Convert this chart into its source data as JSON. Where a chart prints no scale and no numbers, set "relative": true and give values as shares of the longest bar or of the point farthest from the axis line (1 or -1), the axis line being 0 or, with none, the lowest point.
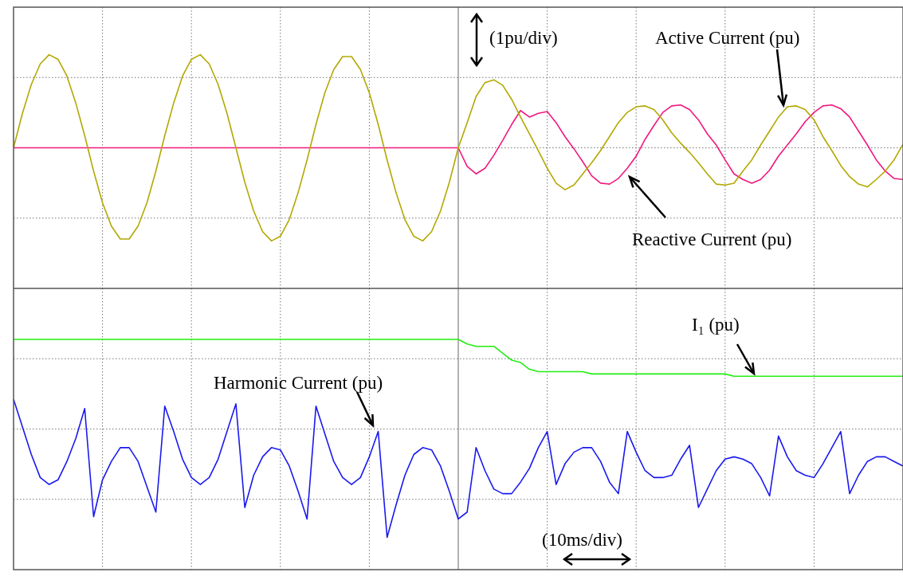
{
  "chart_data": [
    {
      "type": "line",
      "relative": true,
      "grid": true,
      "annotations": [
        "(1pu/div)"
      ],
      "categories": [
        null,
        null,
        null,
        null,
        null,
        null,
        null,
        null,
        null,
        null,
        null,
        null,
        null,
        null,
        null,
        null,
        null,
        null,
        null,
        null,
        null,
        null,
        null,
        null,
        null,
        null,
        null,
        null,
        null,
        null,
        null,
        null,
        null,
        null,
        null,
        null,
        null,
        null,
        null,
        null,
        null,
        null,
        null,
        null,
        null,
        null,
        null,
        null,
        null,
        null,
        null,
        null,
        null,
        null,
        null,
        null,
        null,
        null,
        null,
        null,
        null,
        null,
        null,
        null,
        null,
        null,
        null,
        null,
        null,
        null,
        null,
        null,
        null,
        null,
        null,
        null,
        null,
        null,
        null,
        null,
        null,
        null,
        null,
        null,
        null,
        null,
        null,
        null,
        null,
        null,
        null,
        null,
        null,
        null,
        null,
        null,
        null,
        null,
        null,
        null,
        null
      ],
      "series": [
        {
          "name": "Active Current (pu)",
          "color": "#b3a800",
          "values": [
            0,
            0.37,
            0.68,
            0.9,
            1,
            0.95,
            0.77,
            0.48,
            0.13,
            -0.25,
            -0.59,
            -0.84,
            -0.98,
            -0.98,
            -0.84,
            -0.59,
            -0.25,
            0.13,
            0.48,
            0.77,
            0.95,
            1,
            0.9,
            0.68,
            0.37,
            0,
            -0.37,
            -0.68,
            -0.9,
            -1,
            -0.95,
            -0.77,
            -0.48,
            -0.13,
            0.25,
            0.59,
            0.84,
            0.98,
            0.98,
            0.84,
            0.59,
            0.25,
            -0.13,
            -0.48,
            -0.77,
            -0.95,
            -1,
            -0.9,
            -0.68,
            -0.37,
            0,
            0.27,
            0.55,
            0.7,
            0.73,
            0.67,
            0.52,
            0.33,
            0.15,
            -0.03,
            -0.22,
            -0.38,
            -0.45,
            -0.4,
            -0.28,
            -0.16,
            -0.03,
            0.12,
            0.27,
            0.38,
            0.44,
            0.45,
            0.41,
            0.3,
            0.16,
            0.05,
            -0.05,
            -0.16,
            -0.28,
            -0.39,
            -0.4,
            -0.38,
            -0.25,
            -0.13,
            0.03,
            0.18,
            0.33,
            0.44,
            0.45,
            0.41,
            0.3,
            0.12,
            -0.03,
            -0.19,
            -0.31,
            -0.39,
            -0.42,
            -0.34,
            -0.25,
            -0.13,
            0.04
          ]
        },
        {
          "name": "Reactive Current (pu)",
          "color": "#f0197d",
          "values": [
            0,
            0,
            0,
            0,
            0,
            0,
            0,
            0,
            0,
            0,
            0,
            0,
            0,
            0,
            0,
            0,
            0,
            0,
            0,
            0,
            0,
            0,
            0,
            0,
            0,
            0,
            0,
            0,
            0,
            0,
            0,
            0,
            0,
            0,
            0,
            0,
            0,
            0,
            0,
            0,
            0,
            0,
            0,
            0,
            0,
            0,
            0,
            0,
            0,
            0,
            0,
            -0.2,
            -0.28,
            -0.22,
            -0.08,
            0.08,
            0.25,
            0.4,
            0.33,
            0.37,
            0.39,
            0.27,
            0.12,
            -0.01,
            -0.15,
            -0.3,
            -0.38,
            -0.39,
            -0.33,
            -0.22,
            -0.09,
            0.09,
            0.24,
            0.38,
            0.45,
            0.46,
            0.41,
            0.3,
            0.15,
            0.03,
            -0.13,
            -0.28,
            -0.34,
            -0.38,
            -0.34,
            -0.24,
            -0.09,
            0.03,
            0.15,
            0.28,
            0.38,
            0.45,
            0.46,
            0.42,
            0.33,
            0.18,
            0.03,
            -0.13,
            -0.25,
            -0.33,
            -0.34
          ]
        }
      ]
    },
    {
      "type": "line",
      "relative": true,
      "grid": true,
      "annotations": [
        "(10ms/div)"
      ],
      "categories": [
        null,
        null,
        null,
        null,
        null,
        null,
        null,
        null,
        null,
        null,
        null,
        null,
        null,
        null,
        null,
        null,
        null,
        null,
        null,
        null,
        null,
        null,
        null,
        null,
        null,
        null,
        null,
        null,
        null,
        null,
        null,
        null,
        null,
        null,
        null,
        null,
        null,
        null,
        null,
        null,
        null,
        null,
        null,
        null,
        null,
        null,
        null,
        null,
        null,
        null,
        null,
        null,
        null,
        null,
        null,
        null,
        null,
        null,
        null,
        null,
        null,
        null,
        null,
        null,
        null,
        null,
        null,
        null,
        null,
        null,
        null,
        null,
        null,
        null,
        null,
        null,
        null,
        null,
        null,
        null,
        null,
        null,
        null,
        null,
        null,
        null,
        null,
        null,
        null,
        null,
        null,
        null,
        null,
        null,
        null,
        null,
        null,
        null,
        null,
        null,
        null
      ],
      "series": [
        {
          "name": "I₁ (pu)",
          "color": "#22ee11",
          "values": [
            1,
            1,
            1,
            1,
            1,
            1,
            1,
            1,
            1,
            1,
            1,
            1,
            1,
            1,
            1,
            1,
            1,
            1,
            1,
            1,
            1,
            1,
            1,
            1,
            1,
            1,
            1,
            1,
            1,
            1,
            1,
            1,
            1,
            1,
            1,
            1,
            1,
            1,
            1,
            1,
            1,
            1,
            1,
            1,
            1,
            1,
            1,
            1,
            1,
            1,
            1,
            0.98,
            0.97,
            0.97,
            0.97,
            0.94,
            0.91,
            0.9,
            0.87,
            0.86,
            0.86,
            0.86,
            0.86,
            0.86,
            0.86,
            0.85,
            0.85,
            0.85,
            0.85,
            0.85,
            0.85,
            0.85,
            0.85,
            0.85,
            0.85,
            0.85,
            0.85,
            0.85,
            0.85,
            0.85,
            0.85,
            0.84,
            0.84,
            0.84,
            0.84,
            0.84,
            0.84,
            0.84,
            0.84,
            0.84,
            0.84,
            0.84,
            0.84,
            0.84,
            0.84,
            0.84,
            0.84,
            0.84,
            0.84,
            0.84,
            0.84
          ]
        },
        {
          "name": "Harmonic Current (pu)",
          "color": "#1a1aee",
          "values": [
            0.74,
            0.62,
            0.5,
            0.4,
            0.37,
            0.39,
            0.47,
            0.57,
            0.7,
            0.23,
            0.39,
            0.47,
            0.53,
            0.53,
            0.47,
            0.36,
            0.25,
            0.71,
            0.6,
            0.48,
            0.4,
            0.37,
            0.4,
            0.48,
            0.6,
            0.72,
            0.27,
            0.41,
            0.49,
            0.53,
            0.52,
            0.45,
            0.34,
            0.22,
            0.71,
            0.59,
            0.47,
            0.4,
            0.37,
            0.4,
            0.49,
            0.6,
            0.14,
            0.28,
            0.41,
            0.5,
            0.53,
            0.52,
            0.45,
            0.34,
            0.22,
            0.25,
            0.53,
            0.43,
            0.35,
            0.33,
            0.33,
            0.38,
            0.44,
            0.53,
            0.6,
            0.37,
            0.46,
            0.51,
            0.53,
            0.53,
            0.47,
            0.38,
            0.33,
            0.6,
            0.51,
            0.43,
            0.4,
            0.4,
            0.41,
            0.48,
            0.54,
            0.27,
            0.35,
            0.43,
            0.48,
            0.49,
            0.48,
            0.46,
            0.4,
            0.32,
            0.58,
            0.49,
            0.43,
            0.41,
            0.4,
            0.46,
            0.53,
            0.6,
            0.33,
            0.41,
            0.47,
            0.49,
            0.49,
            0.47,
            0.45
          ]
        }
      ]
    }
  ]
}
